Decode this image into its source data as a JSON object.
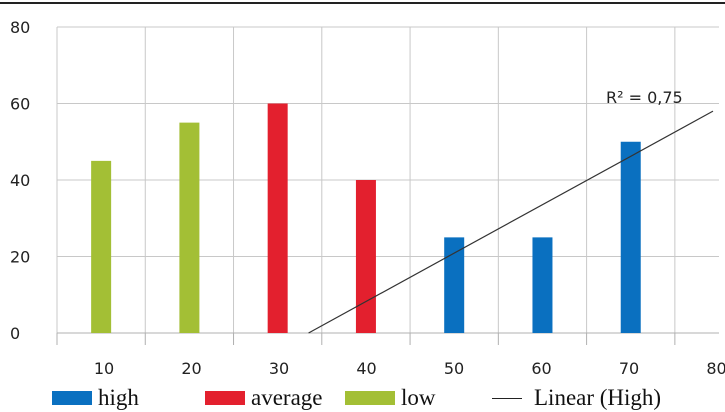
{
  "chart_data": {
    "type": "bar",
    "x": [
      10,
      20,
      30,
      40,
      50,
      60,
      70
    ],
    "series": [
      {
        "name": "high",
        "color": "#0a70c0",
        "values": [
          null,
          null,
          null,
          null,
          25,
          25,
          50
        ]
      },
      {
        "name": "average",
        "color": "#e3202e",
        "values": [
          null,
          null,
          60,
          40,
          null,
          null,
          null
        ]
      },
      {
        "name": "low",
        "color": "#a3bf35",
        "values": [
          45,
          55,
          null,
          null,
          null,
          null,
          null
        ]
      }
    ],
    "trendline": {
      "name": "Linear (High)",
      "color": "#333333",
      "from": [
        33.5,
        0
      ],
      "to": [
        80,
        58
      ],
      "label": "R² = 0,75"
    },
    "x_ticks": [
      10,
      20,
      30,
      40,
      50,
      60,
      70,
      80
    ],
    "y_ticks": [
      0,
      20,
      40,
      60,
      80
    ],
    "xlim": [
      5,
      80
    ],
    "ylim": [
      0,
      80
    ],
    "grid": true,
    "title": "",
    "xlabel": "",
    "ylabel": "",
    "legend_position": "bottom"
  }
}
